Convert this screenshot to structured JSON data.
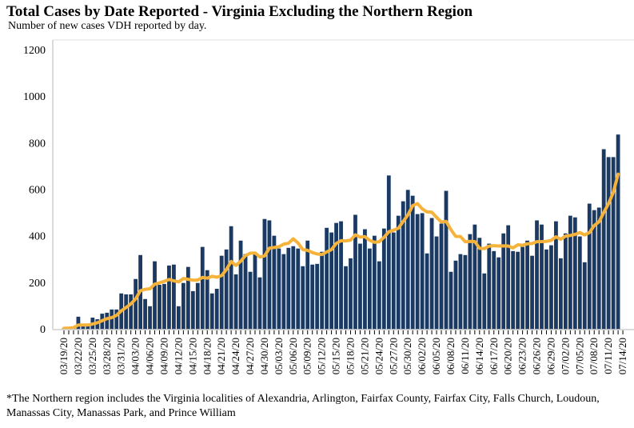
{
  "chart_data": {
    "type": "bar",
    "title": "Total Cases by Date Reported - Virginia Excluding the Northern Region",
    "subtitle": "Number of new cases VDH reported by day.",
    "footnote": "*The Northern region includes the Virginia localities of Alexandria, Arlington, Fairfax County, Fairfax City, Falls Church, Loudoun, Manassas City, Manassas Park, and Prince William",
    "start_date": "03/19/20",
    "end_label_date": "07/14/20",
    "xlabel": "",
    "ylabel": "",
    "ylim": [
      0,
      1200
    ],
    "yticks": [
      0,
      200,
      400,
      600,
      800,
      1000,
      1200
    ],
    "x_tick_labels": [
      "03/19/20",
      "03/22/20",
      "03/25/20",
      "03/28/20",
      "03/31/20",
      "04/03/20",
      "04/06/20",
      "04/09/20",
      "04/12/20",
      "04/15/20",
      "04/18/20",
      "04/21/20",
      "04/24/20",
      "04/27/20",
      "04/30/20",
      "05/03/20",
      "05/06/20",
      "05/09/20",
      "05/12/20",
      "05/15/20",
      "05/18/20",
      "05/21/20",
      "05/24/20",
      "05/27/20",
      "05/30/20",
      "06/02/20",
      "06/05/20",
      "06/08/20",
      "06/11/20",
      "06/14/20",
      "06/17/20",
      "06/20/20",
      "06/23/20",
      "06/26/20",
      "06/29/20",
      "07/02/20",
      "07/05/20",
      "07/08/20",
      "07/11/20",
      "07/14/20"
    ],
    "grid": false,
    "series": [
      {
        "kind": "bar",
        "color": "#1b3a63",
        "values": [
          2,
          4,
          8,
          52,
          15,
          15,
          48,
          41,
          65,
          69,
          83,
          83,
          152,
          148,
          148,
          214,
          317,
          128,
          97,
          290,
          189,
          193,
          272,
          276,
          97,
          197,
          266,
          162,
          197,
          352,
          252,
          152,
          172,
          314,
          341,
          441,
          234,
          379,
          321,
          245,
          321,
          221,
          472,
          466,
          400,
          345,
          321,
          348,
          355,
          345,
          269,
          379,
          276,
          279,
          331,
          434,
          414,
          455,
          462,
          269,
          303,
          490,
          366,
          428,
          345,
          400,
          290,
          431,
          659,
          414,
          486,
          548,
          597,
          572,
          493,
          497,
          324,
          476,
          397,
          452,
          593,
          245,
          293,
          321,
          317,
          407,
          448,
          391,
          238,
          366,
          334,
          307,
          410,
          445,
          334,
          331,
          352,
          379,
          314,
          466,
          448,
          341,
          359,
          462,
          303,
          410,
          486,
          479,
          397,
          286,
          538,
          510,
          521,
          772,
          738,
          738,
          835
        ]
      },
      {
        "kind": "line",
        "color": "#f6b33b",
        "smoothing": "7-day trailing average of daily values"
      }
    ]
  }
}
